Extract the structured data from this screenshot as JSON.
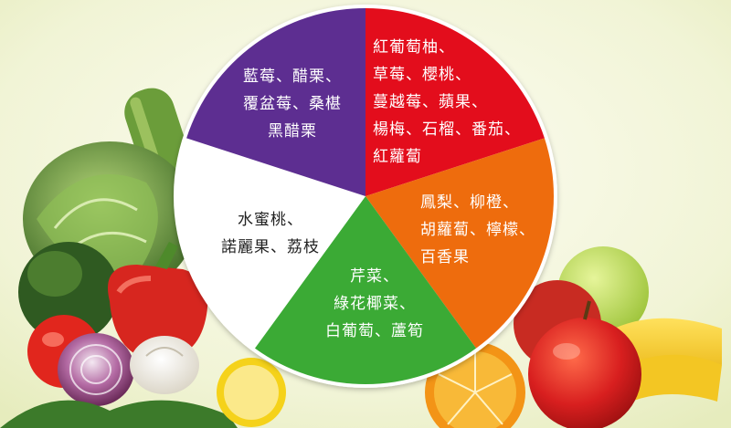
{
  "diagram": {
    "segments": [
      {
        "id": "red",
        "color": "#e3101c",
        "text_color": "#ffffff",
        "lines": [
          "紅葡萄柚、",
          "草莓、櫻桃、",
          "蔓越莓、蘋果、",
          "楊梅、石榴、番茄、",
          "紅蘿蔔"
        ]
      },
      {
        "id": "orange",
        "color": "#ee6c10",
        "text_color": "#ffffff",
        "lines": [
          "鳳梨、柳橙、",
          "胡蘿蔔、檸檬、",
          "百香果"
        ]
      },
      {
        "id": "green",
        "color": "#3aaa35",
        "text_color": "#ffffff",
        "lines": [
          "芹菜、",
          "綠花椰菜、",
          "白葡萄、蘆筍"
        ]
      },
      {
        "id": "white",
        "color": "#ffffff",
        "text_color": "#222222",
        "lines": [
          "水蜜桃、",
          "諾麗果、荔枝"
        ]
      },
      {
        "id": "purple",
        "color": "#5d2d91",
        "text_color": "#ffffff",
        "lines": [
          "藍莓、醋栗、",
          "覆盆莓、桑椹",
          "黑醋栗"
        ]
      }
    ]
  }
}
